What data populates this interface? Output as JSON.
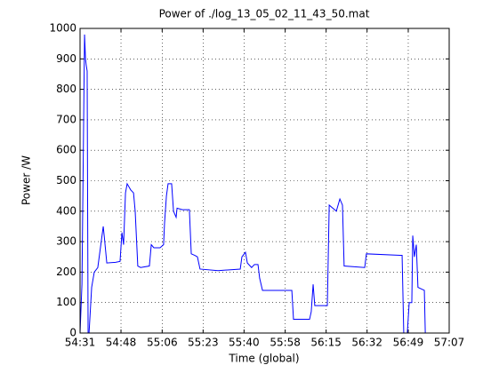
{
  "chart_data": {
    "type": "line",
    "title": "Power of ./log_13_05_02_11_43_50.mat",
    "x_label": "Time (global)",
    "y_label": "Power /W",
    "xlim": [
      3271,
      3427
    ],
    "xticks": [
      {
        "value": 3271,
        "label": "54:31"
      },
      {
        "value": 3288.3,
        "label": "54:48"
      },
      {
        "value": 3305.7,
        "label": "55:06"
      },
      {
        "value": 3323,
        "label": "55:23"
      },
      {
        "value": 3340.3,
        "label": "55:40"
      },
      {
        "value": 3357.7,
        "label": "55:58"
      },
      {
        "value": 3375,
        "label": "56:15"
      },
      {
        "value": 3392.3,
        "label": "56:32"
      },
      {
        "value": 3409.7,
        "label": "56:49"
      },
      {
        "value": 3427,
        "label": "57:07"
      }
    ],
    "ylim": [
      0,
      1000
    ],
    "yticks": [
      0,
      100,
      200,
      300,
      400,
      500,
      600,
      700,
      800,
      900,
      1000
    ],
    "grid": true,
    "series": [
      {
        "color": "#0000ff",
        "x": [
          3271.0,
          3271.8,
          3272.9,
          3273.3,
          3273.6,
          3274.0,
          3274.4,
          3274.8,
          3275.9,
          3277.0,
          3278.5,
          3280.8,
          3281.2,
          3282.3,
          3286.0,
          3287.9,
          3288.7,
          3289.4,
          3290.2,
          3290.9,
          3292.4,
          3293.6,
          3294.3,
          3295.4,
          3296.6,
          3300.3,
          3301.1,
          3302.2,
          3304.8,
          3306.3,
          3306.7,
          3307.5,
          3308.2,
          3309.7,
          3310.5,
          3311.6,
          3312.0,
          3314.2,
          3317.2,
          3318.0,
          3319.5,
          3320.6,
          3321.7,
          3329.3,
          3338.7,
          3339.4,
          3340.9,
          3341.7,
          3343.5,
          3344.7,
          3346.2,
          3346.9,
          3348.1,
          3360.5,
          3361.2,
          3368.0,
          3368.7,
          3369.5,
          3370.2,
          3375.5,
          3376.3,
          3379.3,
          3380.8,
          3381.9,
          3382.6,
          3391.3,
          3392.0,
          3406.3,
          3407.1,
          3407.8,
          3409.3,
          3410.1,
          3411.2,
          3411.6,
          3412.3,
          3413.1,
          3413.8,
          3416.5,
          3416.9
        ],
        "values": [
          0,
          160,
          980,
          900,
          880,
          860,
          0,
          0,
          150,
          200,
          215,
          350,
          320,
          230,
          232,
          235,
          330,
          290,
          460,
          490,
          470,
          460,
          400,
          220,
          215,
          220,
          290,
          280,
          280,
          290,
          360,
          450,
          490,
          490,
          400,
          380,
          410,
          405,
          405,
          260,
          255,
          250,
          210,
          205,
          210,
          250,
          265,
          230,
          215,
          225,
          225,
          180,
          140,
          140,
          45,
          45,
          70,
          160,
          90,
          90,
          420,
          400,
          440,
          420,
          220,
          215,
          260,
          255,
          255,
          0,
          0,
          100,
          100,
          320,
          250,
          290,
          150,
          140,
          0
        ]
      }
    ]
  }
}
